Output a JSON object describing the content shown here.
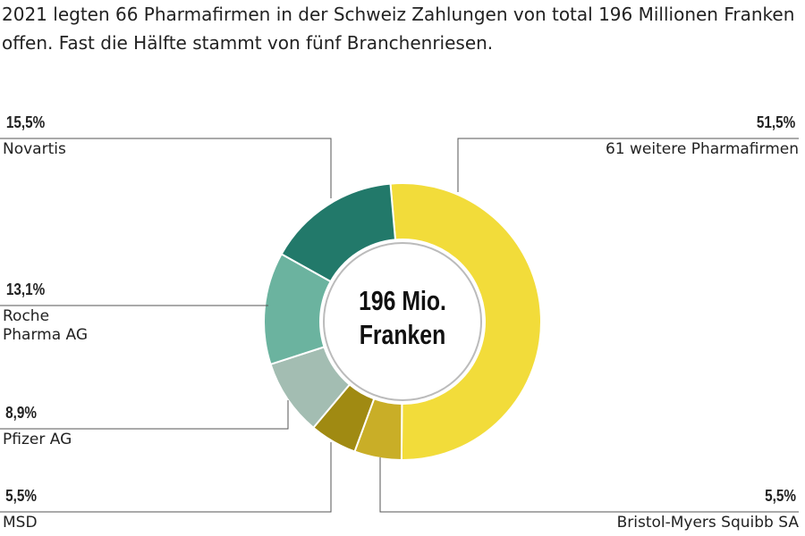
{
  "chart_data": {
    "type": "pie",
    "title": "2021 legten 66 Pharmafirmen in der Schweiz Zahlungen von total 196 Millionen Franken offen. Fast die Hälfte stammt von fünf Branchenriesen.",
    "center_label": "196 Mio. Franken",
    "categories": [
      "61 weitere Pharmafirmen",
      "Bristol-Myers Squibb SA",
      "MSD",
      "Pfizer AG",
      "Roche\nPharma AG",
      "Novartis"
    ],
    "values": [
      51.5,
      5.5,
      5.5,
      8.9,
      13.1,
      15.5
    ],
    "value_labels": [
      "51,5%",
      "5,5%",
      "5,5%",
      "8,9%",
      "13,1%",
      "15,5%"
    ],
    "colors": [
      "#f2dc3a",
      "#c9ae27",
      "#a08a12",
      "#a3bdb2",
      "#6bb39f",
      "#22796a"
    ]
  }
}
